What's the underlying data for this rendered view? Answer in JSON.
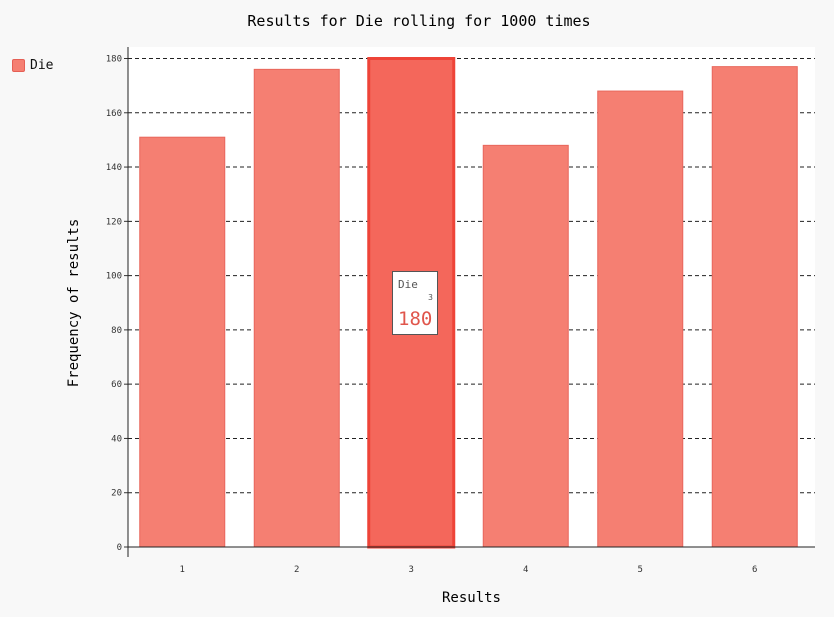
{
  "chart_data": {
    "type": "bar",
    "title": "Results for Die rolling for 1000 times",
    "xlabel": "Results",
    "ylabel": "Frequency of results",
    "categories": [
      "1",
      "2",
      "3",
      "4",
      "5",
      "6"
    ],
    "series": [
      {
        "name": "Die",
        "values": [
          151,
          176,
          180,
          148,
          168,
          177
        ]
      }
    ],
    "y_ticks": [
      0,
      20,
      40,
      60,
      80,
      100,
      120,
      140,
      160,
      180
    ],
    "ylim": [
      0,
      183
    ],
    "grid": "horizontal dashed",
    "legend_position": "top-left",
    "highlighted_category_index": 2,
    "tooltip": {
      "series": "Die",
      "x": "3",
      "value": "180"
    },
    "colors": {
      "bar_fill": "#f57f72",
      "bar_stroke": "#e8675c",
      "highlight_fill": "#f4675b",
      "highlight_stroke": "#ee4438",
      "tooltip_value": "#e0564c"
    }
  }
}
